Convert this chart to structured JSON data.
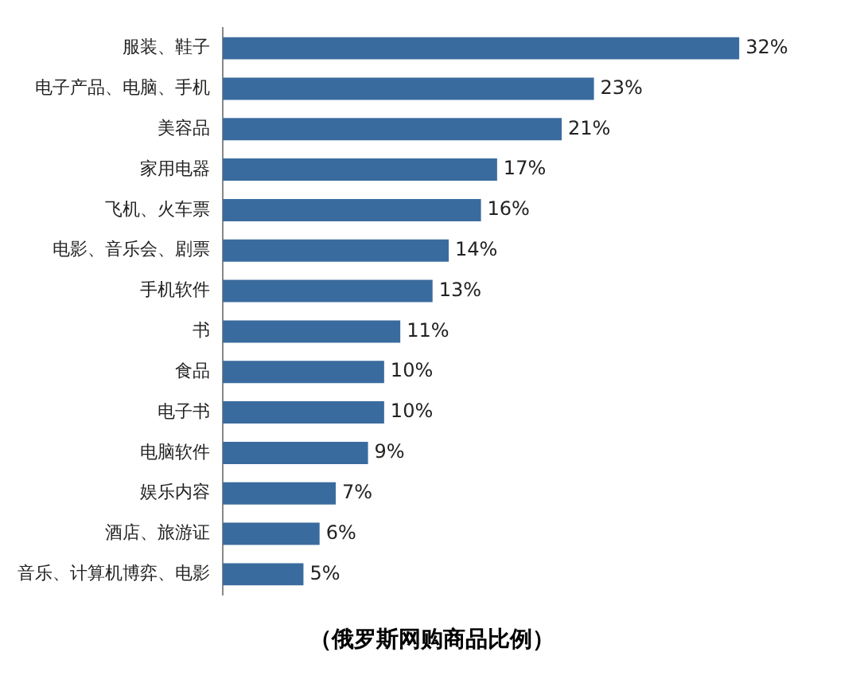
{
  "chart_data": {
    "type": "bar",
    "orientation": "horizontal",
    "title": "（俄罗斯网购商品比例）",
    "categories": [
      "服装、鞋子",
      "电子产品、电脑、手机",
      "美容品",
      "家用电器",
      "飞机、火车票",
      "电影、音乐会、剧票",
      "手机软件",
      "书",
      "食品",
      "电子书",
      "电脑软件",
      "娱乐内容",
      "酒店、旅游证",
      "音乐、计算机博弈、电影"
    ],
    "values": [
      32,
      23,
      21,
      17,
      16,
      14,
      13,
      11,
      10,
      10,
      9,
      7,
      6,
      5
    ],
    "value_labels": [
      "32%",
      "23%",
      "21%",
      "17%",
      "16%",
      "14%",
      "13%",
      "11%",
      "10%",
      "10%",
      "9%",
      "7%",
      "6%",
      "5%"
    ],
    "color": "#3a6b9e",
    "grid": false,
    "legend": false
  }
}
